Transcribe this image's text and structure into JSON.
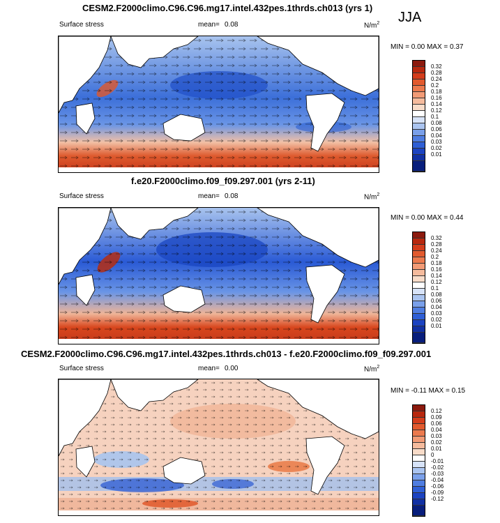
{
  "season": "JJA",
  "colors": {
    "land": "#ffffff",
    "ocean_low": "#2f5fd6",
    "ocean_high": "#d8451b",
    "diff_pos": "#f3b394",
    "diff_neg": "#a9c4ee"
  },
  "panels": [
    {
      "title": "CESM2.F2000climo.C96.C96.mg17.intel.432pes.1thrds.ch013 (yrs 1)",
      "variable": "Surface stress",
      "mean_label": "mean=",
      "mean_value": "0.08",
      "units": "N/m",
      "units_exp": "2",
      "stats": "MIN =  0.00 MAX =  0.37",
      "colorbar_levels": [
        "0.32",
        "0.28",
        "0.24",
        "0.2",
        "0.18",
        "0.16",
        "0.14",
        "0.12",
        "0.1",
        "0.08",
        "0.06",
        "0.04",
        "0.03",
        "0.02",
        "0.01"
      ]
    },
    {
      "title": "f.e20.F2000climo.f09_f09.297.001 (yrs 2-11)",
      "variable": "Surface stress",
      "mean_label": "mean=",
      "mean_value": "0.08",
      "units": "N/m",
      "units_exp": "2",
      "stats": "MIN =  0.00 MAX =  0.44",
      "colorbar_levels": [
        "0.32",
        "0.28",
        "0.24",
        "0.2",
        "0.18",
        "0.16",
        "0.14",
        "0.12",
        "0.1",
        "0.08",
        "0.06",
        "0.04",
        "0.03",
        "0.02",
        "0.01"
      ]
    },
    {
      "title": "CESM2.F2000climo.C96.C96.mg17.intel.432pes.1thrds.ch013 - f.e20.F2000climo.f09_f09.297.001",
      "variable": "Surface stress",
      "mean_label": "mean=",
      "mean_value": "0.00",
      "units": "N/m",
      "units_exp": "2",
      "stats": "MIN = -0.11 MAX =  0.15",
      "colorbar_levels": [
        "0.12",
        "0.09",
        "0.06",
        "0.04",
        "0.03",
        "0.02",
        "0.01",
        "0",
        "-0.01",
        "-0.02",
        "-0.03",
        "-0.04",
        "-0.06",
        "-0.09",
        "-0.12"
      ]
    }
  ]
}
